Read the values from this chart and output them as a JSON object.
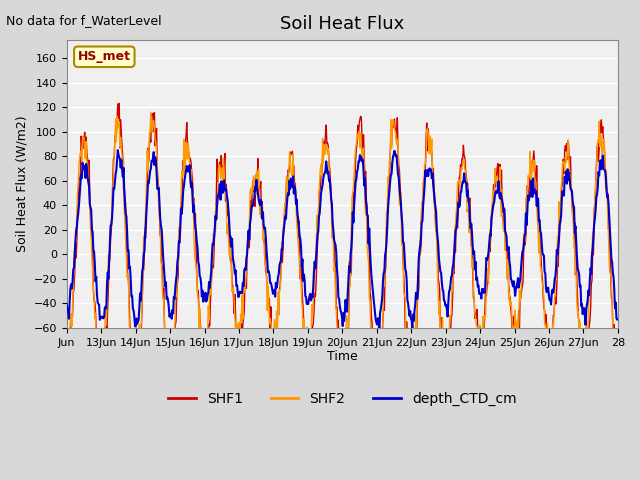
{
  "title": "Soil Heat Flux",
  "top_left_text": "No data for f_WaterLevel",
  "ylabel": "Soil Heat Flux (W/m2)",
  "xlabel": "Time",
  "ylim": [
    -60,
    175
  ],
  "yticks": [
    -60,
    -40,
    -20,
    0,
    20,
    40,
    60,
    80,
    100,
    120,
    140,
    160
  ],
  "xtick_positions": [
    0,
    1,
    2,
    3,
    4,
    5,
    6,
    7,
    8,
    9,
    10,
    11,
    12,
    13,
    14,
    15,
    16
  ],
  "xtick_labels": [
    "Jun",
    "13Jun",
    "14Jun",
    "15Jun",
    "16Jun",
    "17Jun",
    "18Jun",
    "19Jun",
    "20Jun",
    "21Jun",
    "22Jun",
    "23Jun",
    "24Jun",
    "25Jun",
    "26Jun",
    "27Jun",
    "28"
  ],
  "legend_labels": [
    "SHF1",
    "SHF2",
    "depth_CTD_cm"
  ],
  "legend_colors": [
    "#cc0000",
    "#ff9900",
    "#0000cc"
  ],
  "shf1_color": "#cc0000",
  "shf2_color": "#ff9900",
  "ctd_color": "#0000cc",
  "plot_bg_color": "#f0f0f0",
  "fig_bg_color": "#d8d8d8",
  "hs_met_box_color": "#ffffcc",
  "hs_met_text_color": "#990000",
  "hs_met_box_edge_color": "#aa8800",
  "grid_color": "#ffffff",
  "n_days": 16,
  "points_per_day": 48
}
